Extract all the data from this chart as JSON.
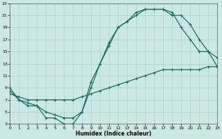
{
  "xlabel": "Humidex (Indice chaleur)",
  "bg_color": "#cce8e4",
  "grid_color": "#aacfcb",
  "line_color": "#1a6b5e",
  "xlim": [
    0,
    23
  ],
  "ylim": [
    3,
    23
  ],
  "xticks": [
    0,
    1,
    2,
    3,
    4,
    5,
    6,
    7,
    8,
    9,
    10,
    11,
    12,
    13,
    14,
    15,
    16,
    17,
    18,
    19,
    20,
    21,
    22,
    23
  ],
  "yticks": [
    3,
    5,
    7,
    9,
    11,
    13,
    15,
    17,
    19,
    21,
    23
  ],
  "line1_x": [
    0,
    1,
    2,
    3,
    4,
    5,
    6,
    7,
    8,
    9,
    10,
    11,
    12,
    13,
    14,
    15,
    16,
    17,
    18,
    19,
    20,
    21,
    22,
    23
  ],
  "line1_y": [
    9,
    7,
    6,
    6,
    4,
    4,
    3,
    3,
    5,
    10,
    13,
    16.5,
    19,
    20,
    21.5,
    22,
    22,
    22,
    21.5,
    19,
    17,
    15,
    15,
    14
  ],
  "line2_x": [
    0,
    1,
    2,
    3,
    4,
    5,
    6,
    7,
    8,
    9,
    10,
    11,
    12,
    13,
    14,
    15,
    16,
    17,
    18,
    19,
    20,
    21,
    22,
    23
  ],
  "line2_y": [
    8,
    7.5,
    7,
    7,
    7,
    7,
    7,
    7,
    7.5,
    8,
    8.5,
    9,
    9.5,
    10,
    10.5,
    11,
    11.5,
    12,
    12,
    12,
    12,
    12,
    12.5,
    12.5
  ],
  "line3_x": [
    0,
    1,
    2,
    3,
    4,
    5,
    6,
    7,
    8,
    9,
    10,
    11,
    12,
    13,
    14,
    15,
    16,
    17,
    18,
    19,
    20,
    21,
    22,
    23
  ],
  "line3_y": [
    8.5,
    7,
    6.5,
    6,
    5,
    4.5,
    4,
    4,
    5,
    9,
    13,
    16,
    19,
    20,
    21,
    22,
    22,
    22,
    21,
    21,
    19.5,
    17,
    15,
    12.5
  ]
}
